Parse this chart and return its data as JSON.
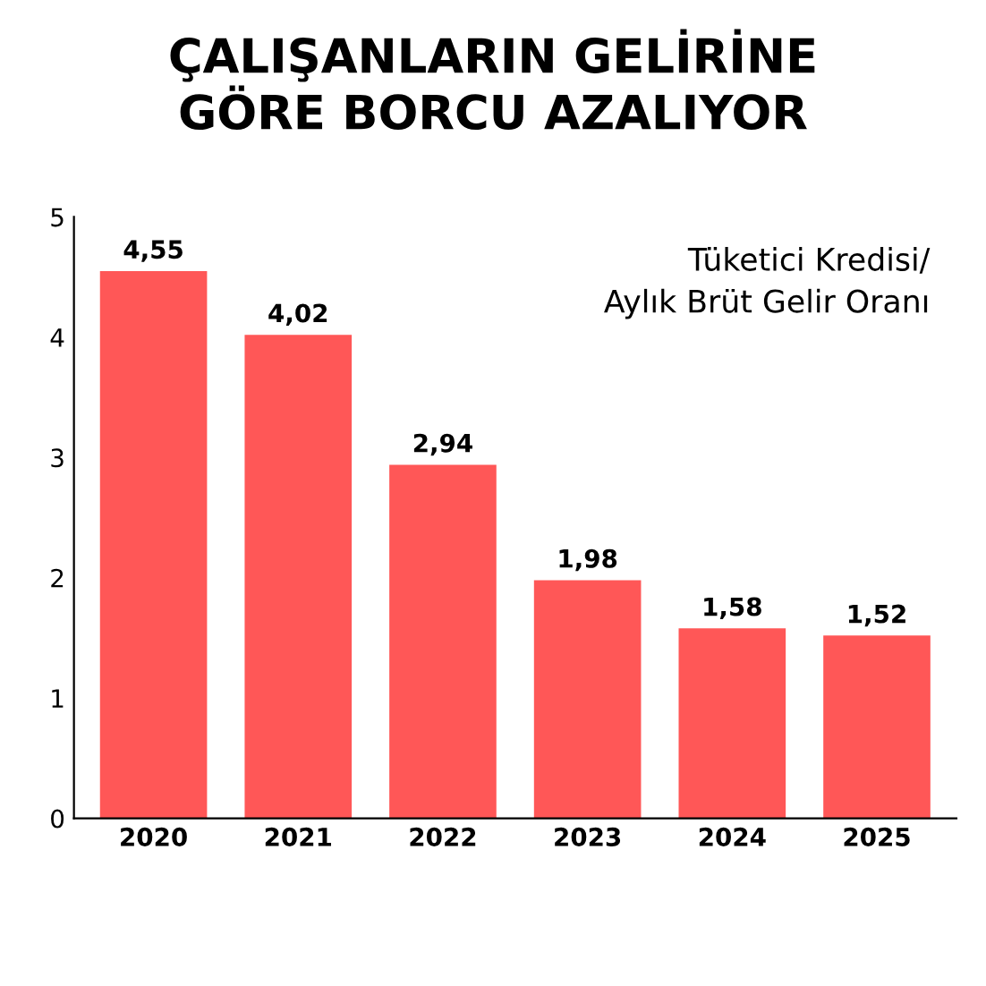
{
  "chart_data": {
    "type": "bar",
    "title": "ÇALIŞANLARIN GELİRİNE\nGÖRE BORCU AZALIYOR",
    "categories": [
      "2020",
      "2021",
      "2022",
      "2023",
      "2024",
      "2025"
    ],
    "values": [
      4.55,
      4.02,
      2.94,
      1.98,
      1.58,
      1.52
    ],
    "value_labels": [
      "4,55",
      "4,02",
      "2,94",
      "1,98",
      "1,58",
      "1,52"
    ],
    "color": "#ff5757",
    "ylim": [
      0,
      5
    ],
    "yticks": [
      0,
      1,
      2,
      3,
      4,
      5
    ],
    "grid": false,
    "annotations": [
      "Tüketici Kredisi/\nAylık Brüt Gelir Oranı"
    ]
  }
}
